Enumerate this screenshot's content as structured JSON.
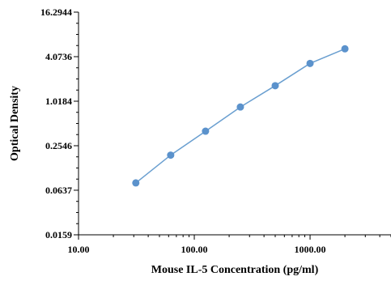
{
  "chart_data": {
    "type": "line",
    "title": "",
    "xlabel": "Mouse IL-5 Concentration (pg/ml)",
    "ylabel": "Optical Density",
    "x_scale": "log",
    "y_scale": "log2",
    "xlim": [
      10,
      5000
    ],
    "ylim": [
      0.0159,
      16.2944
    ],
    "x_ticks": [
      10,
      100,
      1000
    ],
    "x_tick_labels": [
      "10.00",
      "100.00",
      "1000.00"
    ],
    "y_ticks": [
      0.0159,
      0.0637,
      0.2546,
      1.0184,
      4.0736,
      16.2944
    ],
    "y_tick_labels": [
      "0.0159",
      "0.0637",
      "0.2546",
      "1.0184",
      "4.0736",
      "16.2944"
    ],
    "grid": false,
    "legend": "none",
    "series": [
      {
        "x": [
          31.25,
          62.5,
          125,
          250,
          500,
          1000,
          2000
        ],
        "y": [
          0.08,
          0.19,
          0.4,
          0.85,
          1.65,
          3.3,
          5.2
        ]
      }
    ]
  },
  "colors": {
    "line": "#6a9fd0",
    "marker": "#5b92cc",
    "axis": "#000000"
  }
}
